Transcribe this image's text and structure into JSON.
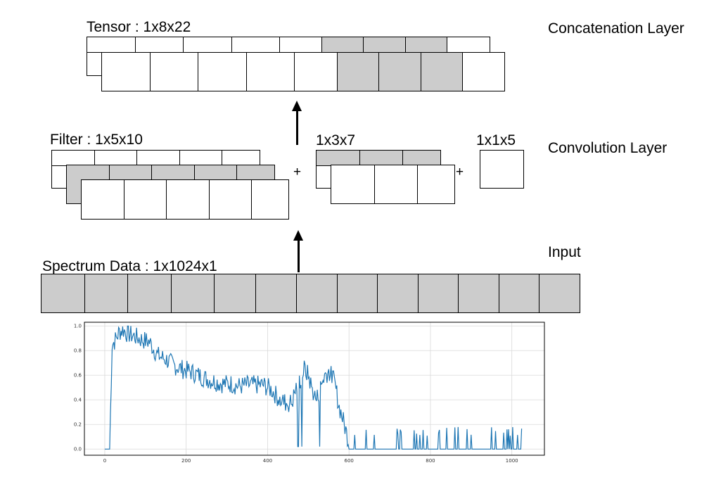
{
  "layers": {
    "concat": "Concatenation Layer",
    "conv": "Convolution Layer",
    "input": "Input"
  },
  "tensor_label": "Tensor : 1x8x22",
  "filter_label": "Filter : 1x5x10",
  "filter2_label": "1x3x7",
  "filter3_label": "1x1x5",
  "plus": "+",
  "input_label": "Spectrum Data : 1x1024x1",
  "chart_data": {
    "type": "line",
    "title": "",
    "xlabel": "",
    "ylabel": "",
    "xlim": [
      -50,
      1080
    ],
    "ylim": [
      -0.05,
      1.03
    ],
    "xticks": [
      "0",
      "200",
      "400",
      "600",
      "800",
      "1000"
    ],
    "xtick_values": [
      0,
      200,
      400,
      600,
      800,
      1000
    ],
    "yticks": [
      "0.0",
      "0.2",
      "0.4",
      "0.6",
      "0.8",
      "1.0"
    ],
    "ytick_values": [
      0.0,
      0.2,
      0.4,
      0.6,
      0.8,
      1.0
    ],
    "grid": true,
    "color": "#1f77b4",
    "series": [
      {
        "x": [
          0,
          12,
          18,
          25,
          35,
          45,
          55,
          70,
          90,
          110,
          130,
          150,
          170,
          190,
          210,
          230,
          250,
          270,
          290,
          310,
          330,
          350,
          370,
          390,
          410,
          430,
          450,
          460,
          470,
          480,
          490,
          500,
          510,
          520,
          530,
          540,
          550,
          560,
          565,
          570,
          575,
          580,
          590,
          600,
          620,
          650,
          700,
          750,
          800,
          850,
          900,
          950,
          1000,
          1024
        ],
        "y": [
          0.0,
          0.0,
          0.85,
          0.88,
          0.95,
          0.97,
          0.94,
          0.92,
          0.89,
          0.87,
          0.76,
          0.73,
          0.68,
          0.65,
          0.63,
          0.6,
          0.57,
          0.55,
          0.53,
          0.53,
          0.51,
          0.52,
          0.52,
          0.52,
          0.48,
          0.4,
          0.37,
          0.38,
          0.5,
          0.56,
          0.65,
          0.6,
          0.48,
          0.4,
          0.5,
          0.6,
          0.63,
          0.58,
          0.52,
          0.45,
          0.35,
          0.3,
          0.18,
          0.05,
          0.06,
          0.06,
          0.06,
          0.06,
          0.05,
          0.05,
          0.06,
          0.06,
          0.05,
          0.04
        ],
        "noise": 0.08,
        "spikes_after_x": 600,
        "spike_height": 0.18
      }
    ]
  }
}
